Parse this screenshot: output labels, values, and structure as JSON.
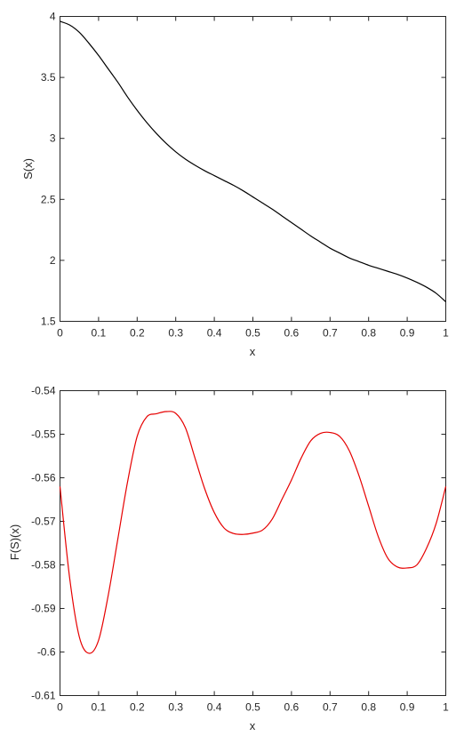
{
  "chart_data": [
    {
      "type": "line",
      "title": "",
      "xlabel": "x",
      "ylabel": "S(x)",
      "xlim": [
        0,
        1
      ],
      "ylim": [
        1.5,
        4
      ],
      "grid": false,
      "x_ticks": [
        "0",
        "0.1",
        "0.2",
        "0.3",
        "0.4",
        "0.5",
        "0.6",
        "0.7",
        "0.8",
        "0.9",
        "1"
      ],
      "y_ticks": [
        "1.5",
        "2",
        "2.5",
        "3",
        "3.5",
        "4"
      ],
      "line_color": "#000000",
      "series": [
        {
          "x": [
            0,
            0.025,
            0.05,
            0.075,
            0.1,
            0.125,
            0.15,
            0.175,
            0.2,
            0.225,
            0.25,
            0.275,
            0.3,
            0.325,
            0.35,
            0.375,
            0.4,
            0.425,
            0.45,
            0.475,
            0.5,
            0.525,
            0.55,
            0.575,
            0.6,
            0.625,
            0.65,
            0.675,
            0.7,
            0.725,
            0.75,
            0.775,
            0.8,
            0.825,
            0.85,
            0.875,
            0.9,
            0.925,
            0.95,
            0.975,
            1
          ],
          "values": [
            3.96,
            3.93,
            3.87,
            3.78,
            3.68,
            3.57,
            3.46,
            3.34,
            3.23,
            3.13,
            3.04,
            2.96,
            2.89,
            2.83,
            2.78,
            2.735,
            2.695,
            2.655,
            2.615,
            2.57,
            2.52,
            2.47,
            2.42,
            2.365,
            2.31,
            2.255,
            2.2,
            2.15,
            2.1,
            2.06,
            2.02,
            1.99,
            1.96,
            1.935,
            1.91,
            1.885,
            1.855,
            1.82,
            1.78,
            1.73,
            1.66
          ]
        }
      ]
    },
    {
      "type": "line",
      "title": "",
      "xlabel": "x",
      "ylabel": "F(S)(x)",
      "xlim": [
        0,
        1
      ],
      "ylim": [
        -0.61,
        -0.54
      ],
      "grid": false,
      "x_ticks": [
        "0",
        "0.1",
        "0.2",
        "0.3",
        "0.4",
        "0.5",
        "0.6",
        "0.7",
        "0.8",
        "0.9",
        "1"
      ],
      "y_ticks": [
        "-0.61",
        "-0.6",
        "-0.59",
        "-0.58",
        "-0.57",
        "-0.56",
        "-0.55",
        "-0.54"
      ],
      "line_color": "#e60000",
      "series": [
        {
          "x": [
            0,
            0.025,
            0.05,
            0.075,
            0.1,
            0.125,
            0.15,
            0.175,
            0.2,
            0.225,
            0.25,
            0.275,
            0.3,
            0.325,
            0.35,
            0.375,
            0.4,
            0.425,
            0.45,
            0.475,
            0.5,
            0.525,
            0.55,
            0.575,
            0.6,
            0.625,
            0.65,
            0.675,
            0.7,
            0.725,
            0.75,
            0.775,
            0.8,
            0.825,
            0.85,
            0.875,
            0.9,
            0.925,
            0.95,
            0.975,
            1
          ],
          "values": [
            -0.562,
            -0.583,
            -0.5965,
            -0.6003,
            -0.5973,
            -0.587,
            -0.574,
            -0.561,
            -0.5505,
            -0.546,
            -0.5453,
            -0.5448,
            -0.5452,
            -0.5485,
            -0.5555,
            -0.5625,
            -0.568,
            -0.5715,
            -0.5728,
            -0.573,
            -0.5727,
            -0.572,
            -0.5695,
            -0.565,
            -0.5605,
            -0.5555,
            -0.5515,
            -0.5498,
            -0.5496,
            -0.5505,
            -0.5538,
            -0.5595,
            -0.5665,
            -0.5735,
            -0.5785,
            -0.5805,
            -0.5807,
            -0.58,
            -0.5762,
            -0.5705,
            -0.562
          ]
        }
      ]
    }
  ]
}
